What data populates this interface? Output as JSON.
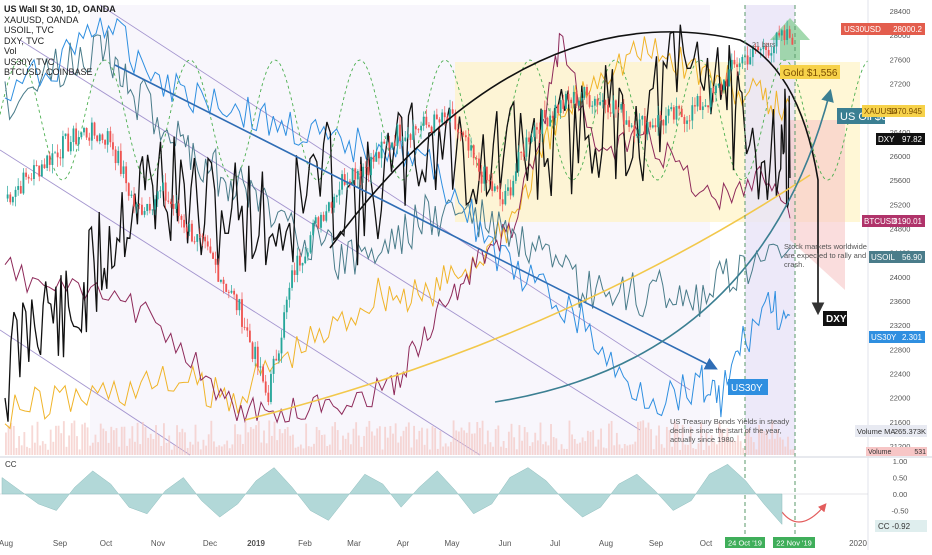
{
  "legend": [
    "US Wall St 30, 1D, OANDA",
    "XAUUSD, OANDA",
    "USOIL, TVC",
    "DXY, TVC",
    "Vol",
    "US30Y, TVC",
    "BTCUSD, COINBASE"
  ],
  "colors": {
    "dow_candle_up": "#26a69a",
    "dow_candle_down": "#ef5350",
    "gold": "#f0b429",
    "oil": "#4a7c8a",
    "dxy": "#111111",
    "us30y": "#2f8fe0",
    "btc": "#8e2a5a",
    "channel": "#7e57c2",
    "volume": "#f4c7c3",
    "cc_fill": "#b2d8d8"
  },
  "chart_data": [
    {
      "type": "line",
      "title": "US Wall St 30, 1D, OANDA",
      "y_axis_ticks": [
        21200,
        21600,
        22000,
        22400,
        22800,
        23200,
        23600,
        24000,
        24400,
        24800,
        25200,
        25600,
        26000,
        26400,
        26800,
        27200,
        27600,
        28000,
        28400
      ],
      "x_axis_ticks": [
        "Aug",
        "Sep",
        "Oct",
        "Nov",
        "Dec",
        "2019",
        "Feb",
        "Mar",
        "Apr",
        "May",
        "Jun",
        "Jul",
        "Aug",
        "Sep",
        "Oct",
        "2020"
      ],
      "ylim": [
        21050,
        28500
      ],
      "series": [
        {
          "name": "US30USD",
          "last_label": "28000.2",
          "values": [
            25300,
            25700,
            26100,
            26400,
            26300,
            25100,
            25400,
            24800,
            24200,
            23400,
            22000,
            24100,
            25000,
            25700,
            25900,
            26400,
            26500,
            26600,
            25800,
            25200,
            26400,
            26800,
            27000,
            26900,
            26500,
            26600,
            26700,
            27000,
            27600,
            27800,
            28000
          ]
        },
        {
          "name": "XAUUSD",
          "last_label": "1470.945"
        },
        {
          "name": "DXY",
          "last_label": "97.82"
        },
        {
          "name": "BTCUSD",
          "last_label": "8190.01"
        },
        {
          "name": "USOIL",
          "last_label": "56.90"
        },
        {
          "name": "US30Y",
          "last_label": "2.301"
        },
        {
          "name": "Volume MA",
          "last_label": "265.373K"
        },
        {
          "name": "Volume",
          "last_label": "531"
        }
      ],
      "annotations": {
        "gold_box": "Gold $1,556",
        "oil_box": "US Oil $64",
        "dxy_box": "DXY",
        "us30y_box": "US30Y",
        "bars": "21 bars",
        "stock_note": "Stock markets worldwide are expected to rally and crash.",
        "bond_note": "US Treasury Bonds Yields in steady decline since the start of the year, actually since 1980."
      }
    },
    {
      "type": "area",
      "title": "CC",
      "y_axis_ticks": [
        "1.00",
        "0.50",
        "0.00",
        "-0.50"
      ],
      "ylim": [
        -1,
        1
      ],
      "last_label": "CC  -0.92",
      "values": [
        0.5,
        0.1,
        -0.3,
        -0.5,
        0.2,
        0.7,
        0.3,
        -0.4,
        -0.6,
        0.1,
        0.5,
        -0.2,
        -0.7,
        -0.3,
        0.4,
        0.8,
        0.2,
        -0.5,
        -0.8,
        -0.1,
        0.6,
        0.3,
        -0.4,
        0.2,
        0.7,
        0.1,
        -0.6,
        -0.3,
        0.5,
        0.8,
        0.4,
        -0.2,
        -0.7,
        -0.4,
        0.3,
        0.6,
        0.1,
        -0.5,
        -0.2,
        0.6,
        0.9,
        0.4,
        -0.3,
        -0.92
      ]
    }
  ],
  "date_labels": {
    "start": "24 Oct '19",
    "end": "22 Nov '19"
  }
}
